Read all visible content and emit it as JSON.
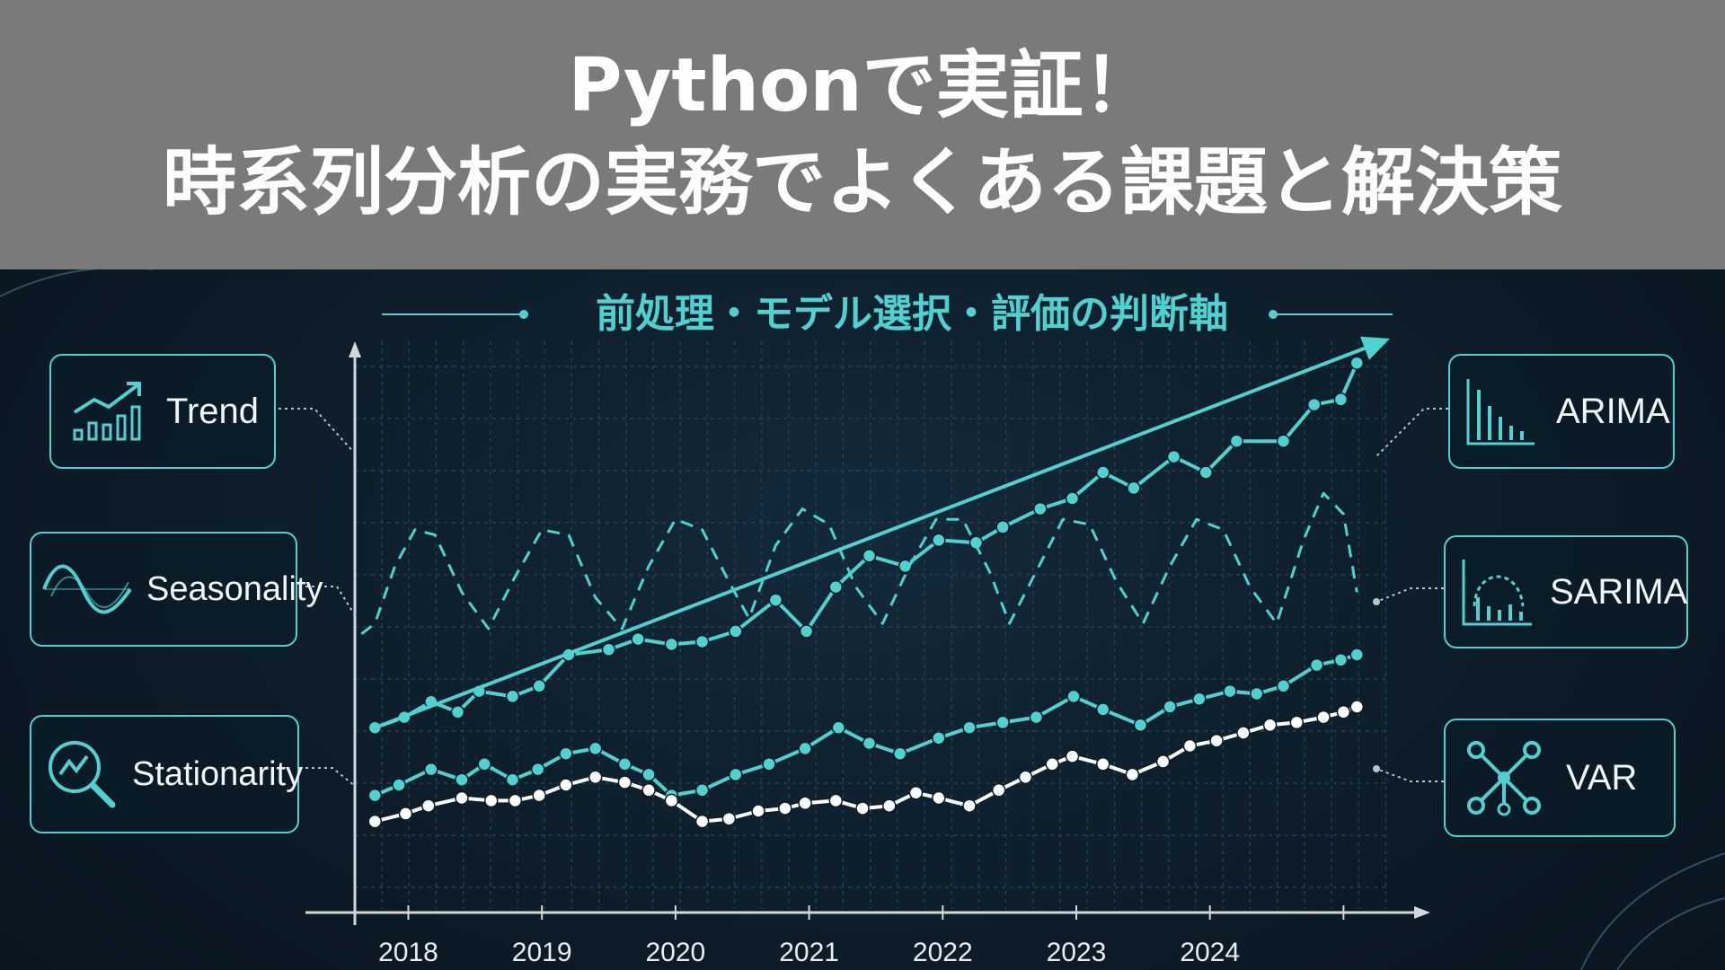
{
  "banner": {
    "title_line1": "Pythonで実証！",
    "title_line2": "時系列分析の実務でよくある課題と解決策"
  },
  "left_labels": [
    "Trend",
    "Seasonality",
    "Stationarity"
  ],
  "right_labels": [
    "ARIMA",
    "SARIMA",
    "VAR"
  ],
  "icons": [
    "trend-chart-icon",
    "sine-wave-icon",
    "magnifier-chart-icon",
    "bar-chart-icon",
    "arch-bar-chart-icon",
    "network-nodes-icon"
  ],
  "colors": {
    "accent": "#4fd1cf",
    "background": "#0d1c28",
    "white_series": "#ffffff"
  },
  "chart_data": {
    "type": "line",
    "title": "前処理・モデル選択・評価の判断軸",
    "xlabel": "",
    "ylabel": "",
    "x_ticks": [
      "2018",
      "2019",
      "2020",
      "2021",
      "2022",
      "2023",
      "2024"
    ],
    "xlim": [
      2017.6,
      2025.3
    ],
    "ylim": [
      0,
      10
    ],
    "grid": true,
    "series": [
      {
        "style": "solid-markers-teal",
        "x": [
          2017.75,
          2017.97,
          2018.17,
          2018.37,
          2018.53,
          2018.78,
          2018.98,
          2019.2,
          2019.5,
          2019.72,
          2019.97,
          2020.2,
          2020.45,
          2020.75,
          2020.98,
          2021.2,
          2021.45,
          2021.72,
          2021.97,
          2022.25,
          2022.45,
          2022.73,
          2022.97,
          2023.2,
          2023.43,
          2023.73,
          2023.97,
          2024.2,
          2024.55,
          2024.78,
          2024.98,
          2025.1
        ],
        "y": [
          3.1,
          3.3,
          3.6,
          3.4,
          3.8,
          3.7,
          3.9,
          4.5,
          4.6,
          4.8,
          4.7,
          4.75,
          4.95,
          5.55,
          4.95,
          5.8,
          6.4,
          6.2,
          6.7,
          6.65,
          6.95,
          7.3,
          7.5,
          8.0,
          7.7,
          8.3,
          8.0,
          8.6,
          8.6,
          9.3,
          9.4,
          10.1
        ]
      },
      {
        "style": "dashed-seasonal-teal",
        "x": [
          2017.65,
          2017.75,
          2017.9,
          2018.05,
          2018.2,
          2018.4,
          2018.6,
          2018.8,
          2019.0,
          2019.2,
          2019.4,
          2019.6,
          2019.8,
          2020.0,
          2020.2,
          2020.4,
          2020.55,
          2020.75,
          2020.95,
          2021.15,
          2021.35,
          2021.55,
          2021.75,
          2021.95,
          2022.15,
          2022.35,
          2022.5,
          2022.7,
          2022.9,
          2023.1,
          2023.3,
          2023.5,
          2023.7,
          2023.9,
          2024.1,
          2024.3,
          2024.5,
          2024.7,
          2024.85,
          2025.0,
          2025.1
        ],
        "y": [
          4.9,
          5.1,
          6.2,
          6.9,
          6.8,
          5.7,
          5.0,
          6.0,
          6.9,
          6.8,
          5.6,
          5.0,
          6.2,
          7.1,
          6.9,
          5.9,
          5.2,
          6.6,
          7.3,
          7.0,
          5.8,
          5.1,
          6.2,
          7.1,
          7.1,
          6.1,
          5.1,
          6.1,
          7.1,
          7.0,
          5.9,
          5.1,
          6.2,
          7.1,
          6.9,
          5.8,
          5.1,
          6.7,
          7.6,
          7.2,
          5.7
        ]
      },
      {
        "style": "solid-markers-teal",
        "x": [
          2017.75,
          2017.93,
          2018.17,
          2018.4,
          2018.57,
          2018.78,
          2018.97,
          2019.18,
          2019.4,
          2019.62,
          2019.8,
          2019.97,
          2020.2,
          2020.45,
          2020.7,
          2020.97,
          2021.22,
          2021.45,
          2021.68,
          2021.97,
          2022.2,
          2022.45,
          2022.7,
          2022.98,
          2023.2,
          2023.48,
          2023.7,
          2023.92,
          2024.15,
          2024.35,
          2024.55,
          2024.8,
          2024.98,
          2025.1
        ],
        "y": [
          1.8,
          2.0,
          2.3,
          2.1,
          2.4,
          2.1,
          2.3,
          2.6,
          2.7,
          2.4,
          2.2,
          1.8,
          1.9,
          2.2,
          2.4,
          2.7,
          3.1,
          2.8,
          2.6,
          2.9,
          3.1,
          3.2,
          3.3,
          3.7,
          3.45,
          3.15,
          3.5,
          3.65,
          3.8,
          3.75,
          3.9,
          4.3,
          4.4,
          4.5
        ]
      },
      {
        "style": "solid-markers-white",
        "x": [
          2017.75,
          2017.98,
          2018.15,
          2018.4,
          2018.62,
          2018.8,
          2018.98,
          2019.18,
          2019.4,
          2019.62,
          2019.8,
          2019.97,
          2020.2,
          2020.4,
          2020.62,
          2020.82,
          2020.97,
          2021.2,
          2021.4,
          2021.6,
          2021.8,
          2021.97,
          2022.2,
          2022.42,
          2022.62,
          2022.82,
          2022.97,
          2023.2,
          2023.42,
          2023.65,
          2023.85,
          2024.05,
          2024.25,
          2024.45,
          2024.65,
          2024.85,
          2025.0,
          2025.1
        ],
        "y": [
          1.3,
          1.45,
          1.6,
          1.75,
          1.7,
          1.7,
          1.8,
          2.0,
          2.15,
          2.05,
          1.9,
          1.7,
          1.3,
          1.35,
          1.5,
          1.55,
          1.65,
          1.7,
          1.55,
          1.6,
          1.85,
          1.75,
          1.6,
          1.9,
          2.15,
          2.4,
          2.55,
          2.4,
          2.2,
          2.45,
          2.75,
          2.85,
          3.0,
          3.15,
          3.2,
          3.3,
          3.4,
          3.5
        ]
      }
    ]
  }
}
